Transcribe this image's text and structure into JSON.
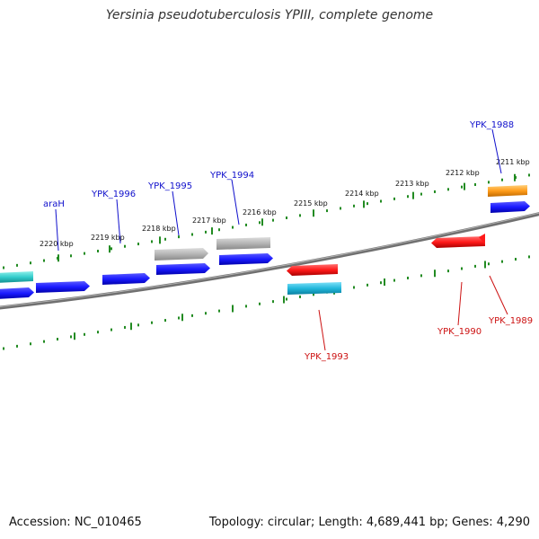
{
  "title": "Yersinia pseudotuberculosis YPIII, complete genome",
  "footer": {
    "accession": "Accession: NC_010465",
    "summary": "Topology: circular; Length: 4,689,441 bp; Genes: 4,290"
  },
  "colors": {
    "backbone": "#808080",
    "tick": "#228b22",
    "forward_label": "#1010cc",
    "reverse_label": "#cc1111",
    "gene_blue": "#1a1aff",
    "gene_gray": "#b4b4b4",
    "gene_cyan": "#22b8dc",
    "gene_teal": "#33cccc",
    "gene_red": "#ff1a1a",
    "gene_orange": "#ff9c1a"
  },
  "scale_labels": [
    "2220 kbp",
    "2219 kbp",
    "2218 kbp",
    "2217 kbp",
    "2216 kbp",
    "2215 kbp",
    "2214 kbp",
    "2213 kbp",
    "2212 kbp",
    "2211 kbp"
  ],
  "forward_labels": [
    "araH",
    "YPK_1996",
    "YPK_1995",
    "YPK_1994",
    "YPK_1988"
  ],
  "reverse_labels": [
    "YPK_1993",
    "YPK_1990",
    "YPK_1989"
  ]
}
